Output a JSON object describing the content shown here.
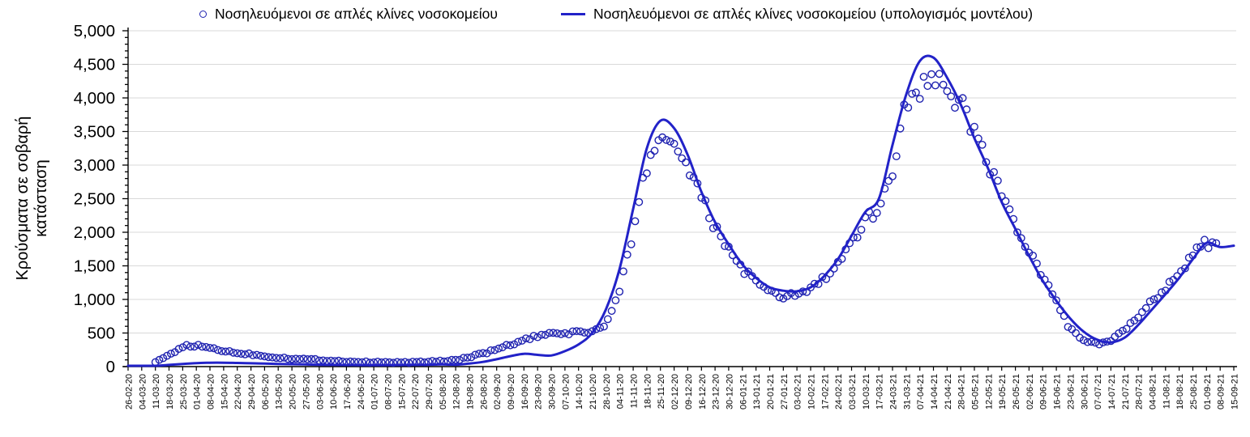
{
  "legend": {
    "observed_label": "Νοσηλευόμενοι σε απλές κλίνες νοσοκομείου",
    "model_label": "Νοσηλευόμενοι σε απλές κλίνες νοσοκομείου (υπολογισμός μοντέλου)"
  },
  "colors": {
    "line": "#2222c8",
    "marker": "#1f22b0",
    "grid": "#d9d9d9",
    "axis": "#000000",
    "background": "#ffffff",
    "text": "#000000"
  },
  "chart_data": {
    "type": "scatter+line",
    "title": "",
    "xlabel": "",
    "ylabel_line1": "Κρούσματα σε σοβαρή",
    "ylabel_line2": "κατάσταση",
    "ylim": [
      0,
      5000
    ],
    "y_major_step": 500,
    "y_minor_step": 100,
    "y_tick_labels": [
      "0",
      "500",
      "1,000",
      "1,500",
      "2,000",
      "2,500",
      "3,000",
      "3,500",
      "4,000",
      "4,500",
      "5,000"
    ],
    "grid": "horizontal-major",
    "legend_position": "top-center",
    "categories": [
      "26-02-20",
      "04-03-20",
      "11-03-20",
      "18-03-20",
      "25-03-20",
      "01-04-20",
      "08-04-20",
      "15-04-20",
      "22-04-20",
      "29-04-20",
      "06-05-20",
      "13-05-20",
      "20-05-20",
      "27-05-20",
      "03-06-20",
      "10-06-20",
      "17-06-20",
      "24-06-20",
      "01-07-20",
      "08-07-20",
      "15-07-20",
      "22-07-20",
      "29-07-20",
      "05-08-20",
      "12-08-20",
      "19-08-20",
      "26-08-20",
      "02-09-20",
      "09-09-20",
      "16-09-20",
      "23-09-20",
      "30-09-20",
      "07-10-20",
      "14-10-20",
      "21-10-20",
      "28-10-20",
      "04-11-20",
      "11-11-20",
      "18-11-20",
      "25-11-20",
      "02-12-20",
      "09-12-20",
      "16-12-20",
      "23-12-20",
      "30-12-20",
      "06-01-21",
      "13-01-21",
      "20-01-21",
      "27-01-21",
      "03-02-21",
      "10-02-21",
      "17-02-21",
      "24-02-21",
      "03-03-21",
      "10-03-21",
      "17-03-21",
      "24-03-21",
      "31-03-21",
      "07-04-21",
      "14-04-21",
      "21-04-21",
      "28-04-21",
      "05-05-21",
      "12-05-21",
      "19-05-21",
      "26-05-21",
      "02-06-21",
      "09-06-21",
      "16-06-21",
      "23-06-21",
      "30-06-21",
      "07-07-21",
      "14-07-21",
      "21-07-21",
      "28-07-21",
      "04-08-21",
      "11-08-21",
      "18-08-21",
      "25-08-21",
      "01-09-21",
      "08-09-21",
      "15-09-21"
    ],
    "series": [
      {
        "name": "Νοσηλευόμενοι σε απλές κλίνες νοσοκομείου",
        "type": "scatter",
        "marker": "open-circle",
        "start_week_index": 2,
        "end_week_index": 80,
        "note": "daily observations; weekly anchor values estimated from the plot",
        "weekly_values": [
          null,
          null,
          60,
          170,
          300,
          310,
          280,
          235,
          200,
          185,
          155,
          135,
          120,
          110,
          100,
          88,
          78,
          70,
          66,
          63,
          63,
          66,
          72,
          82,
          100,
          140,
          195,
          255,
          325,
          395,
          450,
          480,
          500,
          510,
          520,
          620,
          1100,
          2000,
          3000,
          3420,
          3350,
          2980,
          2500,
          2060,
          1750,
          1460,
          1250,
          1100,
          1030,
          1080,
          1160,
          1310,
          1520,
          1810,
          2150,
          2400,
          2900,
          3950,
          4150,
          4280,
          4150,
          3900,
          3500,
          3050,
          2550,
          2100,
          1700,
          1320,
          980,
          560,
          380,
          330,
          390,
          530,
          750,
          980,
          1180,
          1400,
          1680,
          1850,
          1800,
          null
        ]
      },
      {
        "name": "Νοσηλευόμενοι σε απλές κλίνες νοσοκομείου (υπολογισμός μοντέλου)",
        "type": "line",
        "weekly_values": [
          2,
          5,
          12,
          25,
          40,
          52,
          58,
          58,
          54,
          50,
          45,
          40,
          36,
          32,
          28,
          25,
          23,
          22,
          22,
          22,
          23,
          25,
          28,
          32,
          28,
          45,
          70,
          110,
          155,
          190,
          175,
          165,
          230,
          330,
          500,
          850,
          1450,
          2350,
          3250,
          3660,
          3550,
          3150,
          2600,
          2150,
          1820,
          1520,
          1320,
          1180,
          1130,
          1120,
          1180,
          1350,
          1600,
          1950,
          2300,
          2500,
          3300,
          4050,
          4550,
          4600,
          4300,
          3900,
          3400,
          2950,
          2450,
          2050,
          1650,
          1280,
          980,
          720,
          520,
          400,
          360,
          430,
          620,
          850,
          1080,
          1320,
          1600,
          1840,
          1780,
          1800
        ]
      }
    ]
  }
}
